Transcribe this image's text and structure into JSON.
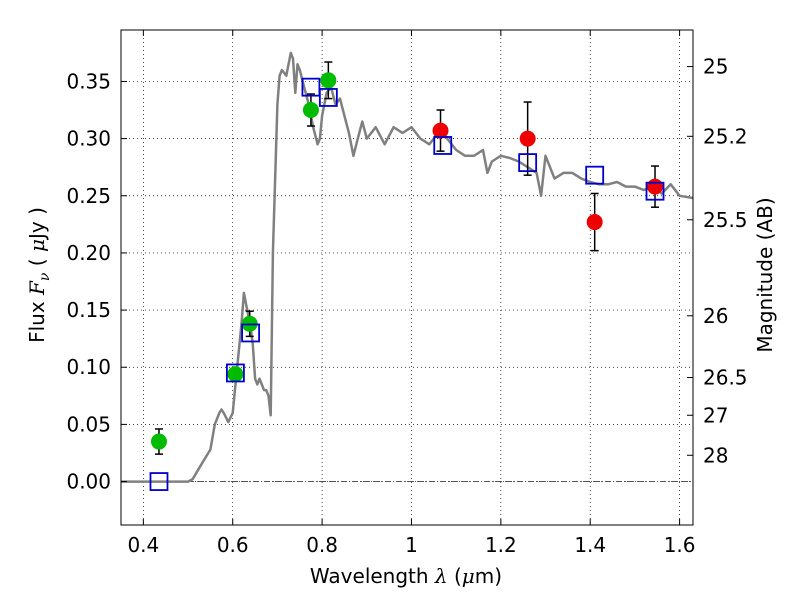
{
  "chart_data": {
    "type": "scatter",
    "title": "",
    "xlabel": "Wavelength  λ (μm)",
    "ylabel": "Flux  Fν ( μJy )",
    "y2label": "Magnitude (AB)",
    "xlim": [
      0.35,
      1.63
    ],
    "ylim": [
      -0.038,
      0.395
    ],
    "grid": true,
    "x_ticks": [
      0.4,
      0.6,
      0.8,
      1.0,
      1.2,
      1.4,
      1.6
    ],
    "x_tick_labels": [
      "0.4",
      "0.6",
      "0.8",
      "1",
      "1.2",
      "1.4",
      "1.6"
    ],
    "y_ticks": [
      0.0,
      0.05,
      0.1,
      0.15,
      0.2,
      0.25,
      0.3,
      0.35
    ],
    "y_tick_labels": [
      "0.00",
      "0.05",
      "0.10",
      "0.15",
      "0.20",
      "0.25",
      "0.30",
      "0.35"
    ],
    "y2_ticks": [
      {
        "label": "25",
        "flux": 0.363
      },
      {
        "label": "25.2",
        "flux": 0.302
      },
      {
        "label": "25.5",
        "flux": 0.229
      },
      {
        "label": "26",
        "flux": 0.145
      },
      {
        "label": "26.5",
        "flux": 0.091
      },
      {
        "label": "27",
        "flux": 0.058
      },
      {
        "label": "28",
        "flux": 0.023
      }
    ],
    "series": [
      {
        "marker": "green-circle",
        "color": "#00bb00",
        "x": [
          0.435,
          0.606,
          0.638,
          0.775,
          0.814
        ],
        "y": [
          0.035,
          0.094,
          0.138,
          0.325,
          0.351
        ],
        "err": [
          0.011,
          0.005,
          0.011,
          0.014,
          0.016
        ]
      },
      {
        "marker": "red-circle",
        "color": "#ee0000",
        "x": [
          1.065,
          1.26,
          1.41,
          1.545
        ],
        "y": [
          0.307,
          0.3,
          0.227,
          0.258
        ],
        "err": [
          0.018,
          0.032,
          0.025,
          0.018
        ]
      },
      {
        "marker": "blue-square",
        "color": "#0000cc",
        "x": [
          0.435,
          0.606,
          0.64,
          0.775,
          0.814,
          1.07,
          1.26,
          1.41,
          1.545
        ],
        "y": [
          0.0,
          0.095,
          0.13,
          0.345,
          0.336,
          0.294,
          0.279,
          0.268,
          0.254
        ]
      }
    ],
    "template_spectrum": {
      "color": "#808080",
      "x": [
        0.35,
        0.5,
        0.51,
        0.53,
        0.55,
        0.56,
        0.57,
        0.575,
        0.58,
        0.59,
        0.6,
        0.62,
        0.625,
        0.63,
        0.635,
        0.64,
        0.645,
        0.65,
        0.655,
        0.66,
        0.665,
        0.67,
        0.675,
        0.68,
        0.685,
        0.69,
        0.7,
        0.705,
        0.71,
        0.72,
        0.73,
        0.735,
        0.74,
        0.745,
        0.75,
        0.76,
        0.77,
        0.78,
        0.79,
        0.795,
        0.8,
        0.81,
        0.82,
        0.83,
        0.84,
        0.85,
        0.86,
        0.87,
        0.88,
        0.89,
        0.9,
        0.92,
        0.94,
        0.96,
        0.98,
        1.0,
        1.02,
        1.04,
        1.06,
        1.08,
        1.1,
        1.12,
        1.14,
        1.16,
        1.17,
        1.18,
        1.2,
        1.22,
        1.24,
        1.26,
        1.28,
        1.29,
        1.3,
        1.32,
        1.34,
        1.36,
        1.38,
        1.4,
        1.42,
        1.44,
        1.46,
        1.48,
        1.5,
        1.52,
        1.54,
        1.56,
        1.58,
        1.6,
        1.63
      ],
      "y": [
        0.0,
        0.0,
        0.002,
        0.015,
        0.028,
        0.05,
        0.06,
        0.063,
        0.06,
        0.052,
        0.06,
        0.14,
        0.165,
        0.155,
        0.145,
        0.135,
        0.12,
        0.09,
        0.085,
        0.09,
        0.085,
        0.08,
        0.08,
        0.075,
        0.058,
        0.2,
        0.33,
        0.355,
        0.36,
        0.355,
        0.375,
        0.37,
        0.34,
        0.365,
        0.36,
        0.345,
        0.33,
        0.31,
        0.295,
        0.3,
        0.32,
        0.34,
        0.345,
        0.33,
        0.335,
        0.32,
        0.305,
        0.285,
        0.3,
        0.315,
        0.3,
        0.31,
        0.295,
        0.31,
        0.305,
        0.31,
        0.3,
        0.295,
        0.305,
        0.3,
        0.29,
        0.285,
        0.285,
        0.29,
        0.27,
        0.28,
        0.285,
        0.283,
        0.28,
        0.275,
        0.27,
        0.25,
        0.285,
        0.265,
        0.27,
        0.27,
        0.265,
        0.262,
        0.26,
        0.26,
        0.262,
        0.258,
        0.258,
        0.255,
        0.258,
        0.252,
        0.26,
        0.25,
        0.248
      ]
    }
  }
}
